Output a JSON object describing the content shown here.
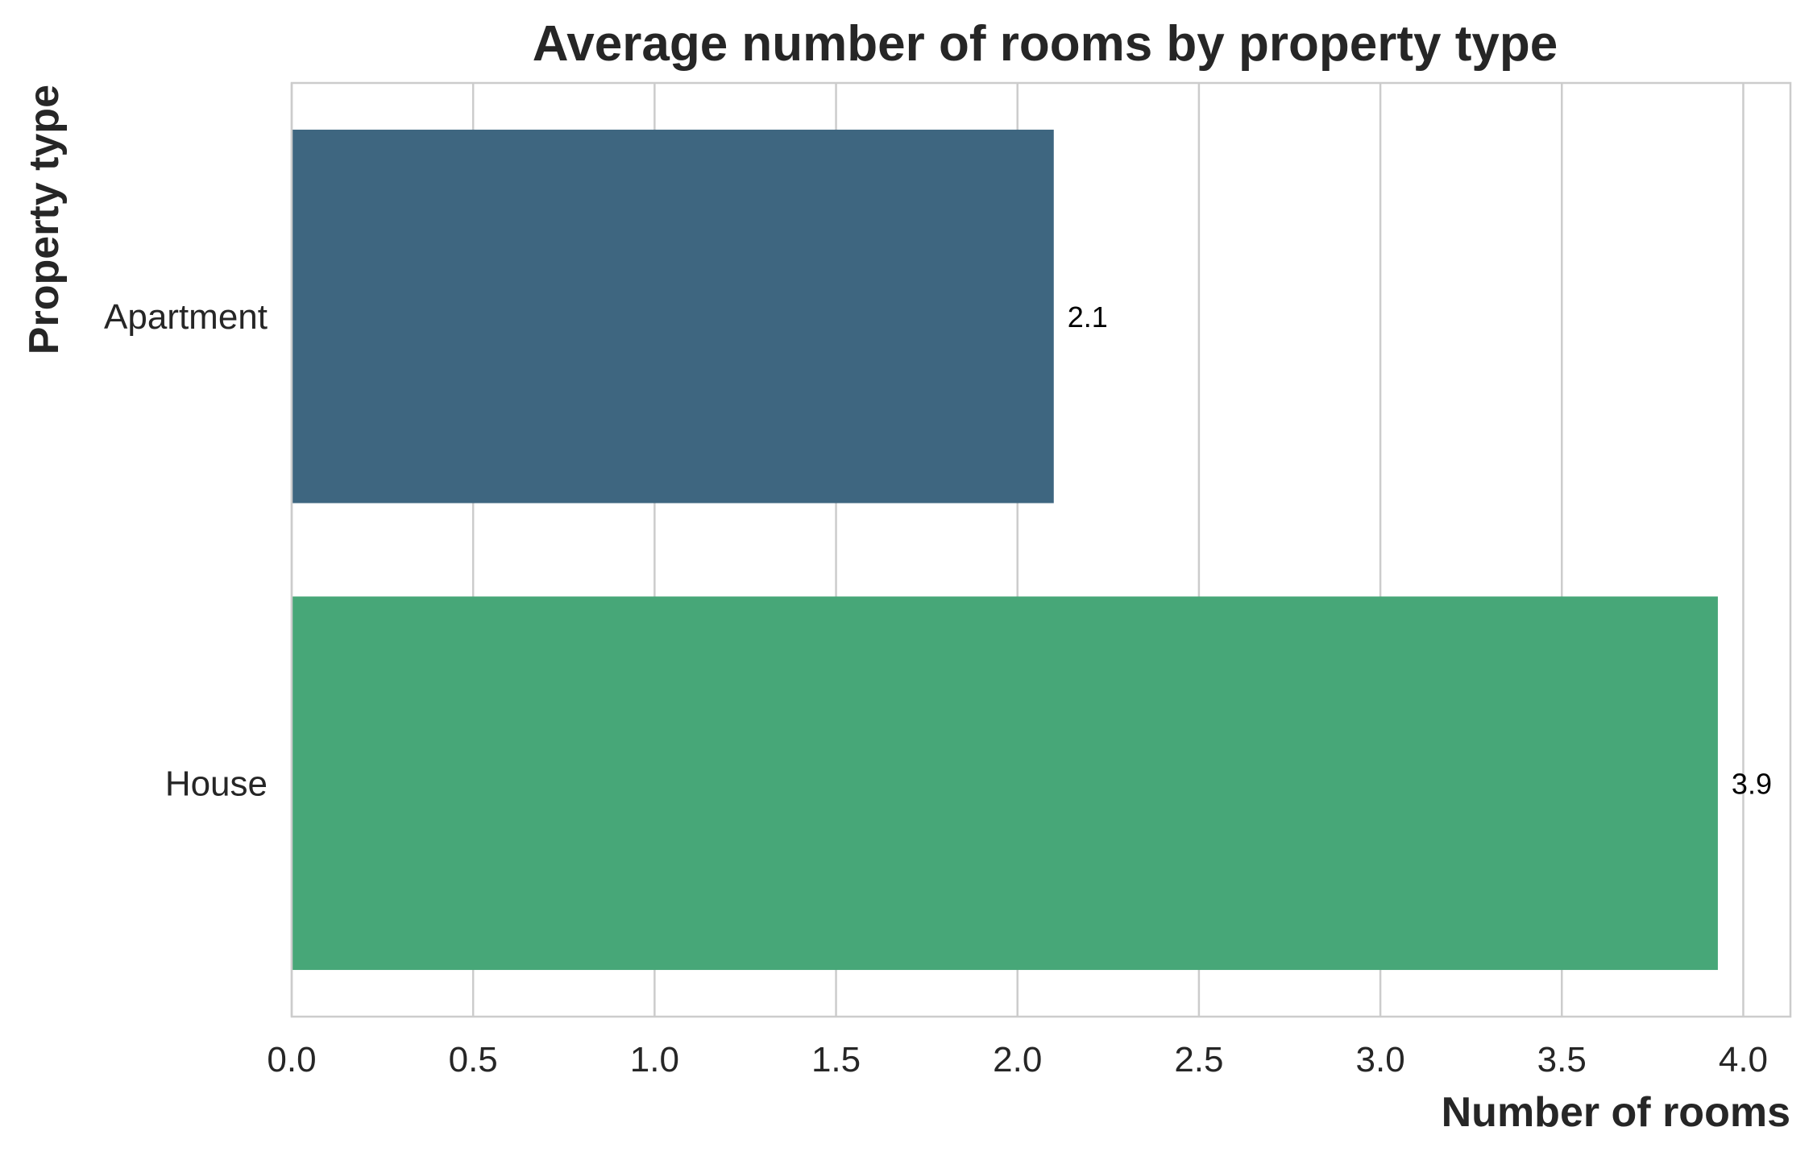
{
  "chart_data": {
    "type": "bar",
    "orientation": "horizontal",
    "title": "Average number of rooms by property type",
    "xlabel": "Number of rooms",
    "ylabel": "Property type",
    "categories": [
      "Apartment",
      "House"
    ],
    "values": [
      2.1,
      3.93
    ],
    "data_labels": [
      "2.1",
      "3.9"
    ],
    "colors": [
      "#3e6680",
      "#47a778"
    ],
    "xlim": [
      0,
      4.13
    ],
    "xticks": [
      0.0,
      0.5,
      1.0,
      1.5,
      2.0,
      2.5,
      3.0,
      3.5,
      4.0
    ],
    "xtick_labels": [
      "0.0",
      "0.5",
      "1.0",
      "1.5",
      "2.0",
      "2.5",
      "3.0",
      "3.5",
      "4.0"
    ],
    "grid": "vertical",
    "legend": "none"
  },
  "style": {
    "grid_color": "#cccccc",
    "spine_color": "#cccccc",
    "text_color": "#262626"
  }
}
